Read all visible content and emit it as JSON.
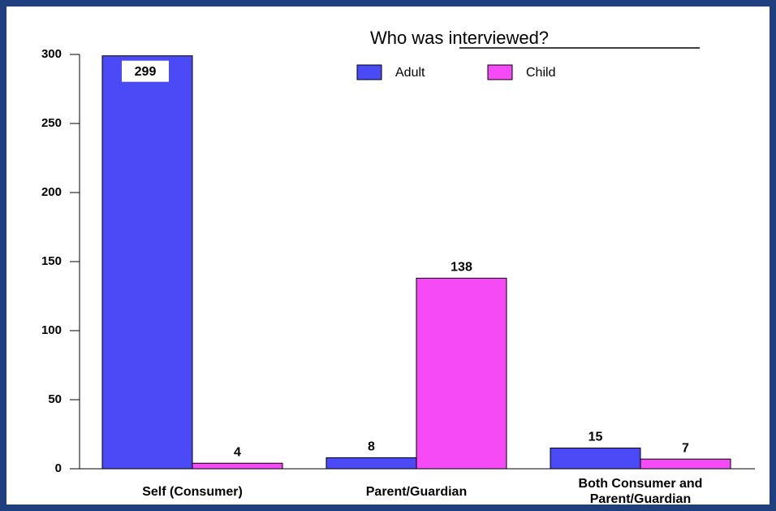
{
  "chart_data": {
    "type": "bar",
    "title": "Who was interviewed?",
    "categories": [
      "Self (Consumer)",
      "Parent/Guardian",
      "Both Consumer and Parent/Guardian"
    ],
    "series": [
      {
        "name": "Adult",
        "color": "#4a4af7",
        "values": [
          299,
          8,
          15
        ]
      },
      {
        "name": "Child",
        "color": "#f74af7",
        "values": [
          4,
          138,
          7
        ]
      }
    ],
    "ylim": [
      0,
      300
    ],
    "yticks": [
      0,
      50,
      100,
      150,
      200,
      250,
      300
    ],
    "grid": false
  }
}
